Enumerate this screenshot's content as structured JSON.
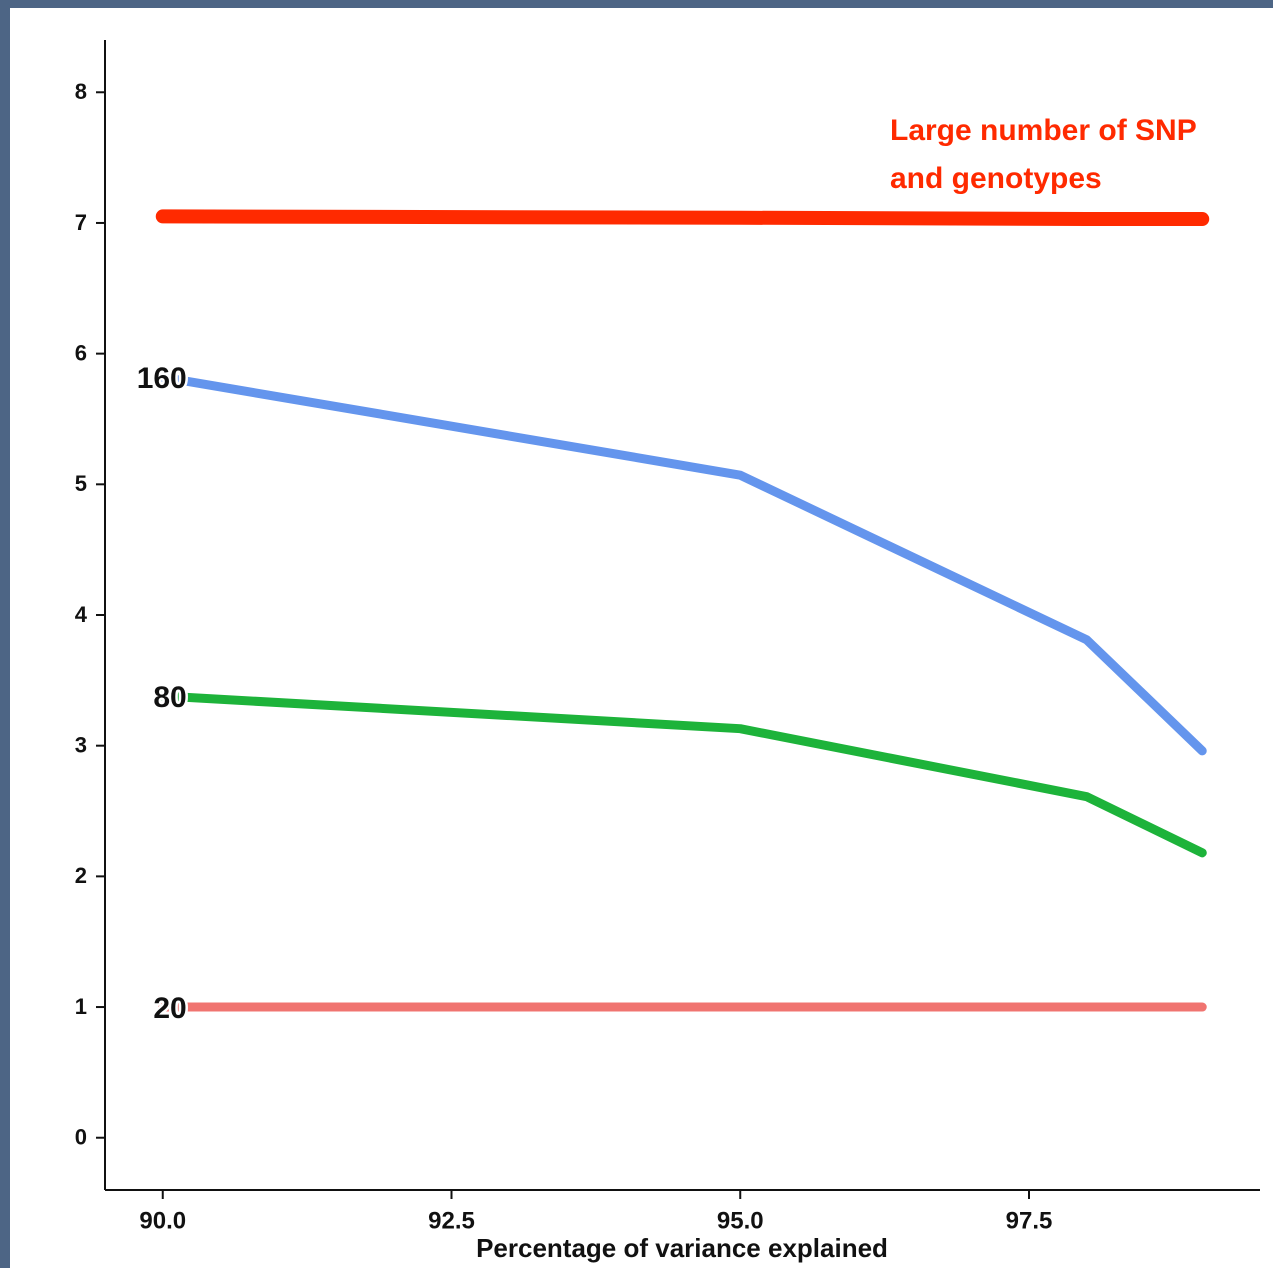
{
  "chart_data": {
    "type": "line",
    "x": [
      90,
      95,
      98,
      99
    ],
    "series": [
      {
        "color": "#ff2a00",
        "width": 14,
        "values": [
          7.05,
          7.04,
          7.03,
          7.03
        ]
      },
      {
        "name": "160",
        "color": "#6495ed",
        "width": 9,
        "values": [
          5.82,
          5.07,
          3.81,
          2.96
        ]
      },
      {
        "name": "80",
        "color": "#1db33a",
        "width": 9,
        "values": [
          3.38,
          3.13,
          2.61,
          2.18
        ]
      },
      {
        "name": "20",
        "color": "#f07470",
        "width": 9,
        "values": [
          1.0,
          1.0,
          1.0,
          1.0
        ]
      }
    ],
    "annotation": [
      "Large number of SNP",
      "and genotypes"
    ],
    "annotation_color": "#ff2a00",
    "x_label": "Percentage of variance explained",
    "xlim": [
      89.5,
      99.5
    ],
    "xticks": [
      {
        "value": 90,
        "label": "90.0"
      },
      92.5,
      {
        "value": 95,
        "label": "95.0"
      },
      97.5
    ],
    "ylim": [
      -0.4,
      8.4
    ],
    "yticks": [
      0,
      1,
      2,
      3,
      4,
      5,
      6,
      7,
      8
    ],
    "grid": false
  }
}
